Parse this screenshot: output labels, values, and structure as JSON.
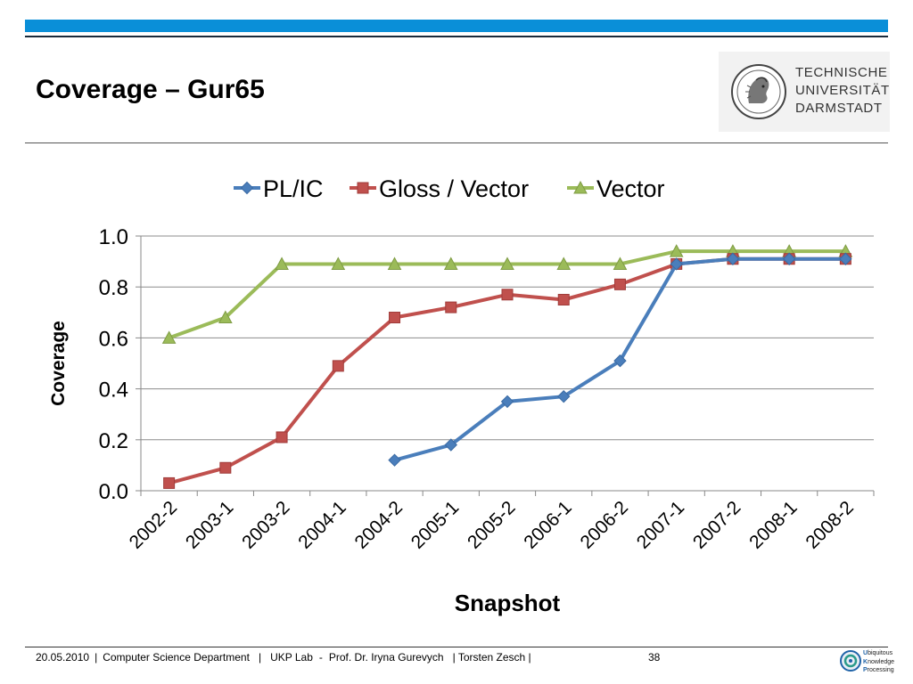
{
  "slide": {
    "title": "Coverage – Gur65"
  },
  "logo": {
    "lines": [
      "TECHNISCHE",
      "UNIVERSITÄT",
      "DARMSTADT"
    ]
  },
  "footer": {
    "date": "20.05.2010",
    "department": "Computer Science Department",
    "lab": "UKP Lab",
    "professor": "Prof. Dr. Iryna Gurevych",
    "author": "| Torsten Zesch |",
    "page": "38"
  },
  "ukp_logo": {
    "lines": [
      {
        "initial": "U",
        "rest": "biquitous"
      },
      {
        "initial": "K",
        "rest": "nowledge"
      },
      {
        "initial": "P",
        "rest": "rocessing"
      }
    ]
  },
  "chart_data": {
    "type": "line",
    "title": "",
    "xlabel": "Snapshot",
    "ylabel": "Coverage",
    "ylim": [
      0,
      1.0
    ],
    "yticks": [
      "0.0",
      "0.2",
      "0.4",
      "0.6",
      "0.8",
      "1.0"
    ],
    "grid": true,
    "legend_position": "top",
    "categories": [
      "2002-2",
      "2003-1",
      "2003-2",
      "2004-1",
      "2004-2",
      "2005-1",
      "2005-2",
      "2006-1",
      "2006-2",
      "2007-1",
      "2007-2",
      "2008-1",
      "2008-2"
    ],
    "series": [
      {
        "name": "PL/IC",
        "color": "#4a7ebb",
        "marker": "diamond",
        "values": [
          null,
          null,
          null,
          null,
          0.12,
          0.18,
          0.35,
          0.37,
          0.51,
          0.89,
          0.91,
          0.91,
          0.91
        ]
      },
      {
        "name": "Gloss / Vector",
        "color": "#c0504d",
        "marker": "square",
        "values": [
          0.03,
          0.09,
          0.21,
          0.49,
          0.68,
          0.72,
          0.77,
          0.75,
          0.81,
          0.89,
          0.91,
          0.91,
          0.91
        ]
      },
      {
        "name": "Vector",
        "color": "#9bbb59",
        "marker": "triangle",
        "values": [
          0.6,
          0.68,
          0.89,
          0.89,
          0.89,
          0.89,
          0.89,
          0.89,
          0.89,
          0.94,
          0.94,
          0.94,
          0.94
        ]
      }
    ]
  }
}
